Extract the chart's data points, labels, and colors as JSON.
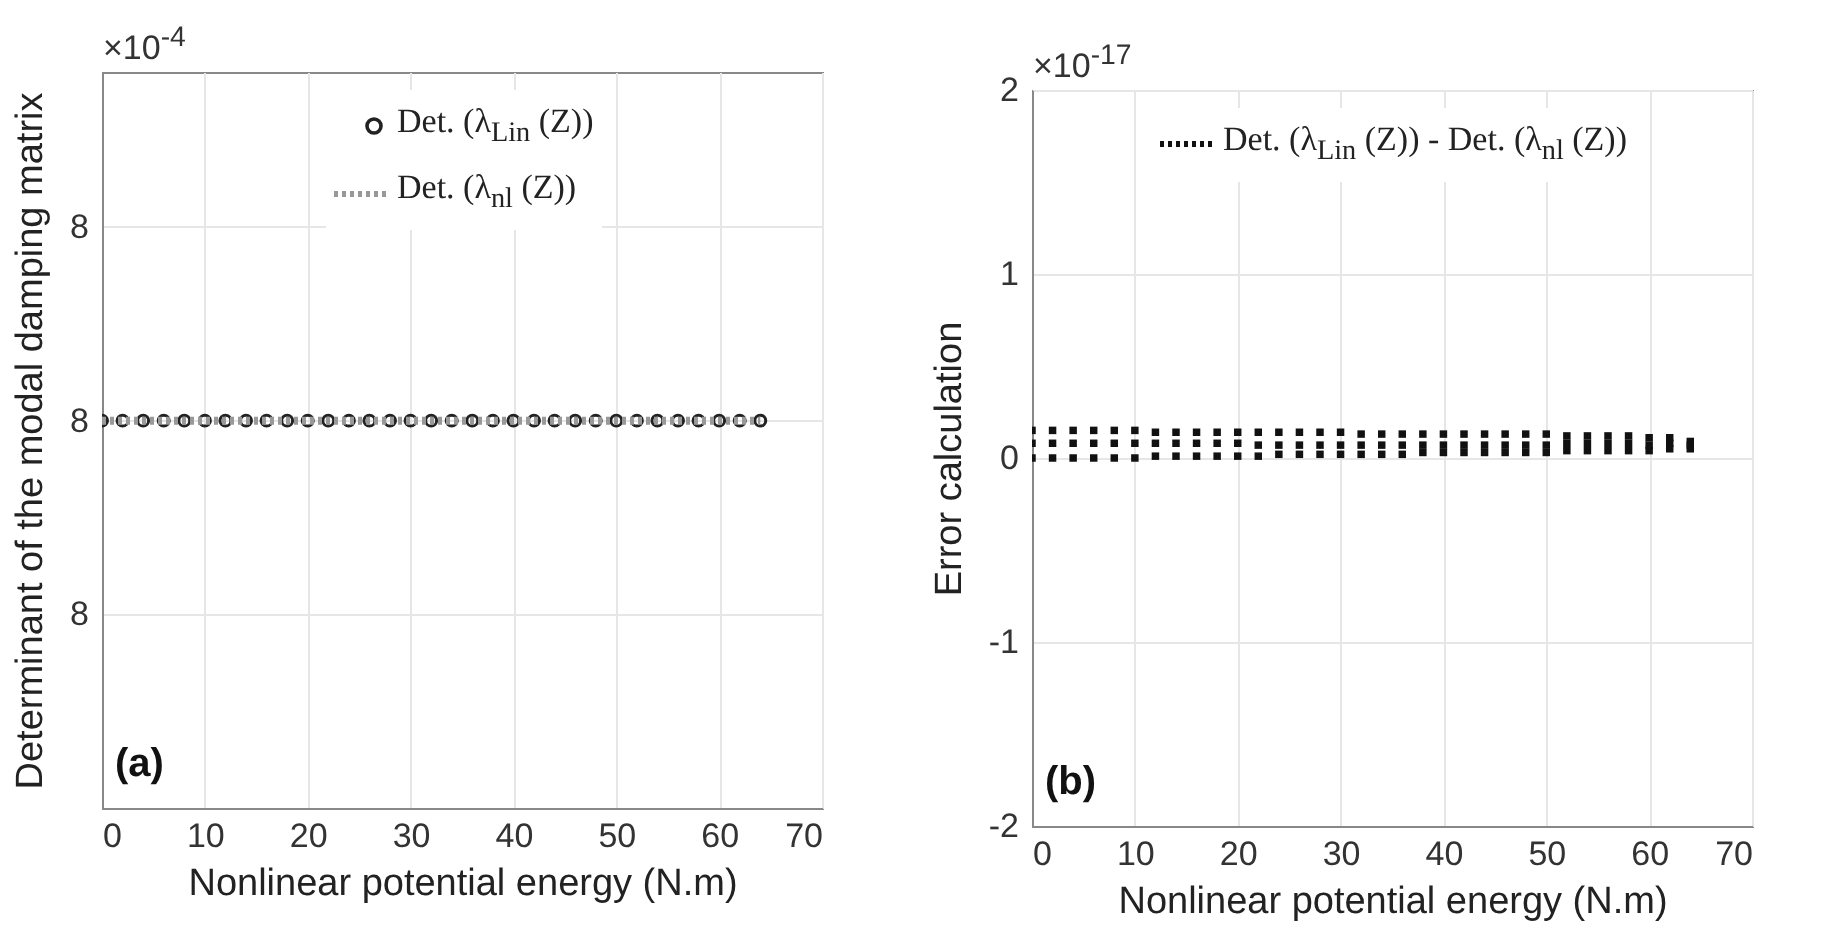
{
  "chart_data": [
    {
      "type": "line",
      "xlabel": "Nonlinear potential energy (N.m)",
      "ylabel": "Determinant of the modal damping matrix",
      "annotations": [
        "×10$^{-4}$",
        "(a)"
      ],
      "xlim": [
        0,
        70
      ],
      "xticks": [
        0,
        10,
        20,
        30,
        40,
        50,
        60,
        70
      ],
      "ylim": [
        7.9998,
        8.00018
      ],
      "yticks": [
        {
          "value": 7.9999,
          "label": "8"
        },
        {
          "value": 8,
          "label": "8"
        },
        {
          "value": 8.0001,
          "label": "8"
        }
      ],
      "grid": true,
      "legend": "top",
      "series": [
        {
          "name": "Det. (λ$_{Lin}$ (Z))",
          "type": "scatter",
          "marker": "circle",
          "color": "#222222",
          "x": [
            0,
            2,
            4,
            6,
            8,
            10,
            12,
            14,
            16,
            18,
            20,
            22,
            24,
            26,
            28,
            30,
            32,
            34,
            36,
            38,
            40,
            42,
            44,
            46,
            48,
            50,
            52,
            54,
            56,
            58,
            60,
            62,
            64
          ],
          "values": [
            8,
            8,
            8,
            8,
            8,
            8,
            8,
            8,
            8,
            8,
            8,
            8,
            8,
            8,
            8,
            8,
            8,
            8,
            8,
            8,
            8,
            8,
            8,
            8,
            8,
            8,
            8,
            8,
            8,
            8,
            8,
            8,
            8
          ]
        },
        {
          "name": "Det. (λ$_{nl}$ (Z))",
          "line_style": "dotted",
          "color": "#999999",
          "x": [
            0,
            64
          ],
          "values": [
            8,
            8
          ]
        }
      ]
    },
    {
      "type": "scatter",
      "xlabel": "Nonlinear potential energy (N.m)",
      "ylabel": "Error calculation",
      "annotations": [
        "×10$^{-17}$",
        "(b)"
      ],
      "xlim": [
        0,
        70
      ],
      "xticks": [
        0,
        10,
        20,
        30,
        40,
        50,
        60,
        70
      ],
      "ylim": [
        -2,
        2
      ],
      "yticks": [
        -2,
        -1,
        0,
        1,
        2
      ],
      "grid": true,
      "legend": "top",
      "series": [
        {
          "name": "Det. (λ$_{Lin}$ (Z)) - Det. (λ$_{nl}$ (Z))",
          "marker": "square",
          "color": "#111111",
          "x": [
            0,
            0,
            0,
            2,
            2,
            2,
            4,
            4,
            4,
            6,
            6,
            6,
            8,
            8,
            8,
            10,
            10,
            10,
            12,
            12,
            12,
            14,
            14,
            14,
            16,
            16,
            16,
            18,
            18,
            18,
            20,
            20,
            20,
            22,
            22,
            22,
            24,
            24,
            24,
            26,
            26,
            26,
            28,
            28,
            28,
            30,
            30,
            30,
            32,
            32,
            32,
            34,
            34,
            34,
            36,
            36,
            36,
            38,
            38,
            38,
            40,
            40,
            40,
            42,
            42,
            42,
            44,
            44,
            44,
            46,
            46,
            46,
            48,
            48,
            48,
            50,
            50,
            50,
            52,
            52,
            52,
            54,
            54,
            54,
            56,
            56,
            56,
            58,
            58,
            58,
            60,
            60,
            60,
            62,
            62,
            62,
            64,
            64,
            64
          ],
          "values": [
            0,
            0.08,
            0.15,
            0,
            0.08,
            0.15,
            0,
            0.08,
            0.15,
            0,
            0.08,
            0.15,
            0,
            0.08,
            0.15,
            0,
            0.08,
            0.15,
            0.01,
            0.08,
            0.14,
            0.01,
            0.08,
            0.14,
            0.01,
            0.08,
            0.14,
            0.01,
            0.08,
            0.14,
            0.01,
            0.08,
            0.14,
            0.01,
            0.07,
            0.14,
            0.02,
            0.07,
            0.14,
            0.02,
            0.07,
            0.14,
            0.02,
            0.07,
            0.14,
            0.02,
            0.07,
            0.14,
            0.02,
            0.07,
            0.13,
            0.02,
            0.07,
            0.13,
            0.02,
            0.07,
            0.13,
            0.03,
            0.07,
            0.13,
            0.03,
            0.07,
            0.13,
            0.03,
            0.07,
            0.13,
            0.03,
            0.07,
            0.13,
            0.03,
            0.07,
            0.13,
            0.03,
            0.07,
            0.13,
            0.03,
            0.07,
            0.13,
            0.04,
            0.08,
            0.12,
            0.04,
            0.08,
            0.12,
            0.04,
            0.08,
            0.12,
            0.04,
            0.08,
            0.12,
            0.04,
            0.07,
            0.11,
            0.05,
            0.08,
            0.11,
            0.05,
            0.07,
            0.09
          ]
        }
      ]
    }
  ]
}
